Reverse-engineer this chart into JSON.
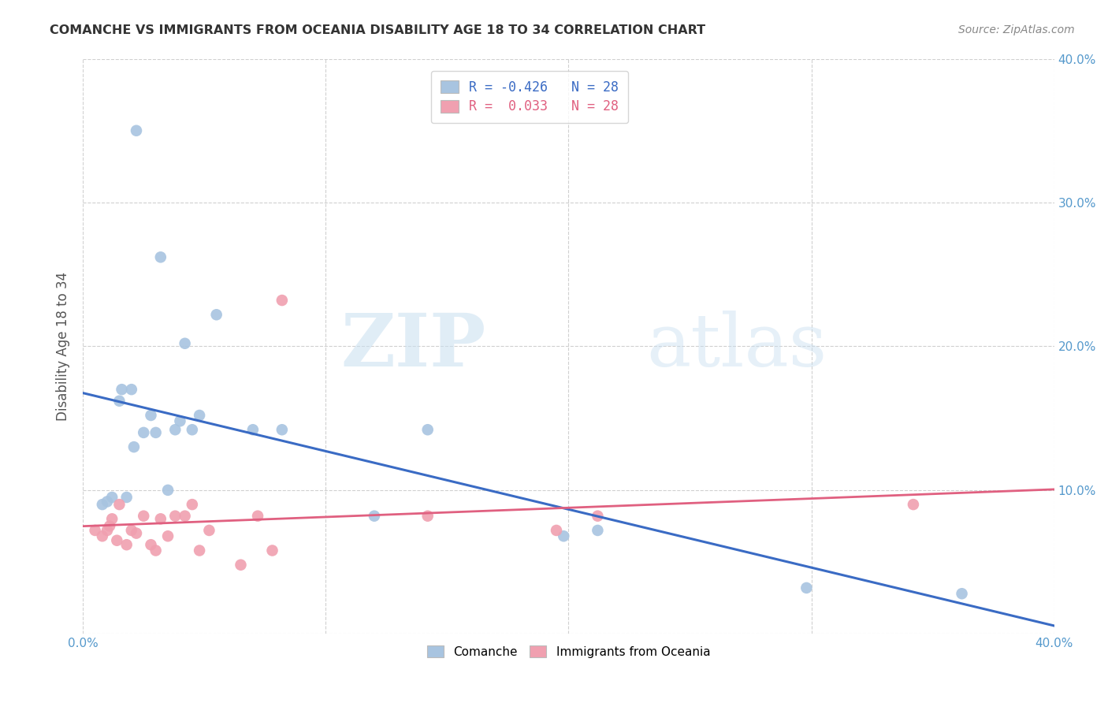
{
  "title": "COMANCHE VS IMMIGRANTS FROM OCEANIA DISABILITY AGE 18 TO 34 CORRELATION CHART",
  "source": "Source: ZipAtlas.com",
  "ylabel": "Disability Age 18 to 34",
  "xlim": [
    0.0,
    0.4
  ],
  "ylim": [
    0.0,
    0.4
  ],
  "xticks": [
    0.0,
    0.1,
    0.2,
    0.3,
    0.4
  ],
  "yticks": [
    0.0,
    0.1,
    0.2,
    0.3,
    0.4
  ],
  "xticklabels": [
    "0.0%",
    "",
    "",
    "",
    "40.0%"
  ],
  "yticklabels_right": [
    "",
    "10.0%",
    "20.0%",
    "30.0%",
    "40.0%"
  ],
  "comanche_color": "#a8c4e0",
  "oceania_color": "#f0a0b0",
  "line_blue": "#3a6bc4",
  "line_pink": "#e06080",
  "legend_R_comanche": "R = -0.426",
  "legend_N_comanche": "N = 28",
  "legend_R_oceania": "R =  0.033",
  "legend_N_oceania": "N = 28",
  "comanche_x": [
    0.008,
    0.01,
    0.012,
    0.015,
    0.016,
    0.018,
    0.02,
    0.021,
    0.022,
    0.025,
    0.028,
    0.03,
    0.032,
    0.035,
    0.038,
    0.04,
    0.042,
    0.045,
    0.048,
    0.055,
    0.07,
    0.082,
    0.12,
    0.142,
    0.198,
    0.212,
    0.298,
    0.362
  ],
  "comanche_y": [
    0.09,
    0.092,
    0.095,
    0.162,
    0.17,
    0.095,
    0.17,
    0.13,
    0.35,
    0.14,
    0.152,
    0.14,
    0.262,
    0.1,
    0.142,
    0.148,
    0.202,
    0.142,
    0.152,
    0.222,
    0.142,
    0.142,
    0.082,
    0.142,
    0.068,
    0.072,
    0.032,
    0.028
  ],
  "oceania_x": [
    0.005,
    0.008,
    0.01,
    0.011,
    0.012,
    0.014,
    0.015,
    0.018,
    0.02,
    0.022,
    0.025,
    0.028,
    0.03,
    0.032,
    0.035,
    0.038,
    0.042,
    0.045,
    0.048,
    0.052,
    0.065,
    0.072,
    0.078,
    0.082,
    0.142,
    0.195,
    0.212,
    0.342
  ],
  "oceania_y": [
    0.072,
    0.068,
    0.072,
    0.075,
    0.08,
    0.065,
    0.09,
    0.062,
    0.072,
    0.07,
    0.082,
    0.062,
    0.058,
    0.08,
    0.068,
    0.082,
    0.082,
    0.09,
    0.058,
    0.072,
    0.048,
    0.082,
    0.058,
    0.232,
    0.082,
    0.072,
    0.082,
    0.09
  ],
  "watermark_zip": "ZIP",
  "watermark_atlas": "atlas",
  "background_color": "#ffffff",
  "grid_color": "#d0d0d0",
  "tick_color": "#5599cc",
  "title_color": "#333333",
  "source_color": "#888888",
  "ylabel_color": "#555555"
}
